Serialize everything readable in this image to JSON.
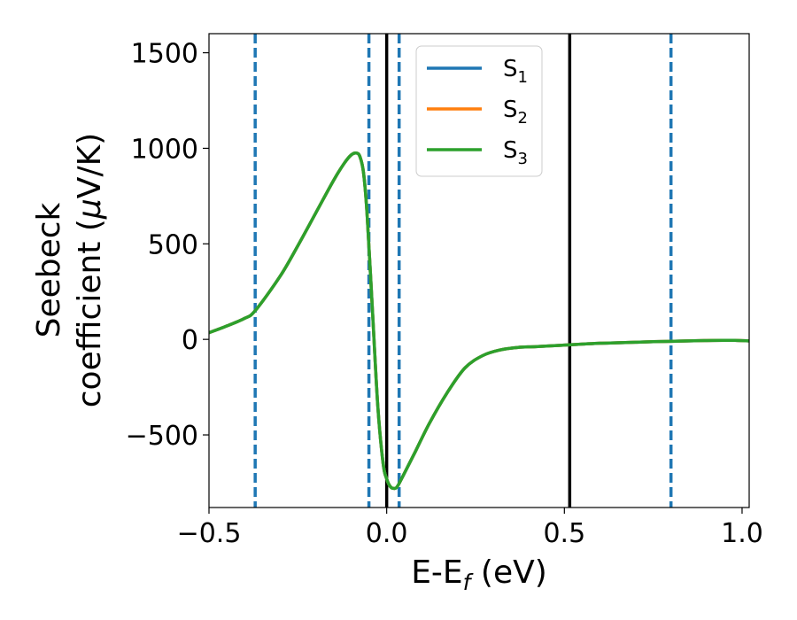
{
  "chart_data": {
    "type": "line",
    "title": "",
    "xlabel_main": "E-E",
    "xlabel_sub": "f",
    "xlabel_unit": " (eV)",
    "ylabel_line1": "Seebeck",
    "ylabel_line2_pre": "coefficient  (",
    "ylabel_mu": "μ",
    "ylabel_line2_post": "V/K)",
    "xlim": [
      -0.5,
      1.02
    ],
    "ylim": [
      -880,
      1600
    ],
    "xticks": [
      -0.5,
      0.0,
      0.5,
      1.0
    ],
    "xtick_labels": [
      "−0.5",
      "0.0",
      "0.5",
      "1.0"
    ],
    "yticks": [
      -500,
      0,
      500,
      1000,
      1500
    ],
    "ytick_labels": [
      "−500",
      "0",
      "500",
      "1000",
      "1500"
    ],
    "grid": false,
    "legend_position": "top-center",
    "vlines_solid": [
      0.0,
      0.515
    ],
    "vlines_dashed": [
      -0.37,
      -0.05,
      0.035,
      0.8
    ],
    "x": [
      -0.5,
      -0.45,
      -0.4,
      -0.37,
      -0.3,
      -0.25,
      -0.2,
      -0.15,
      -0.12,
      -0.1,
      -0.085,
      -0.075,
      -0.065,
      -0.055,
      -0.04,
      -0.025,
      -0.01,
      0.0,
      0.01,
      0.02,
      0.03,
      0.05,
      0.08,
      0.12,
      0.17,
      0.22,
      0.27,
      0.32,
      0.37,
      0.42,
      0.5,
      0.55,
      0.6,
      0.65,
      0.7,
      0.75,
      0.8,
      0.85,
      0.9,
      0.95,
      0.98,
      1.02
    ],
    "series": [
      {
        "name": "S",
        "sub": "1",
        "color": "#1f77b4",
        "values": [
          35,
          70,
          110,
          150,
          330,
          490,
          660,
          830,
          920,
          965,
          975,
          955,
          870,
          650,
          150,
          -350,
          -650,
          -730,
          -770,
          -780,
          -770,
          -700,
          -590,
          -440,
          -280,
          -150,
          -85,
          -55,
          -42,
          -38,
          -30,
          -25,
          -20,
          -18,
          -15,
          -12,
          -10,
          -8,
          -6,
          -5,
          -5,
          -8
        ]
      },
      {
        "name": "S",
        "sub": "2",
        "color": "#ff7f0e",
        "values": [
          35,
          70,
          110,
          150,
          330,
          490,
          660,
          830,
          920,
          965,
          975,
          955,
          870,
          650,
          150,
          -350,
          -650,
          -730,
          -770,
          -780,
          -770,
          -700,
          -590,
          -440,
          -280,
          -150,
          -85,
          -55,
          -42,
          -38,
          -30,
          -25,
          -20,
          -18,
          -15,
          -12,
          -10,
          -8,
          -6,
          -5,
          -5,
          -8
        ]
      },
      {
        "name": "S",
        "sub": "3",
        "color": "#2ca02c",
        "values": [
          35,
          70,
          110,
          150,
          330,
          490,
          660,
          830,
          920,
          965,
          975,
          955,
          870,
          650,
          150,
          -350,
          -650,
          -730,
          -770,
          -780,
          -770,
          -700,
          -590,
          -440,
          -280,
          -150,
          -85,
          -55,
          -42,
          -38,
          -30,
          -25,
          -20,
          -18,
          -15,
          -12,
          -10,
          -8,
          -6,
          -5,
          -5,
          -8
        ]
      }
    ]
  }
}
